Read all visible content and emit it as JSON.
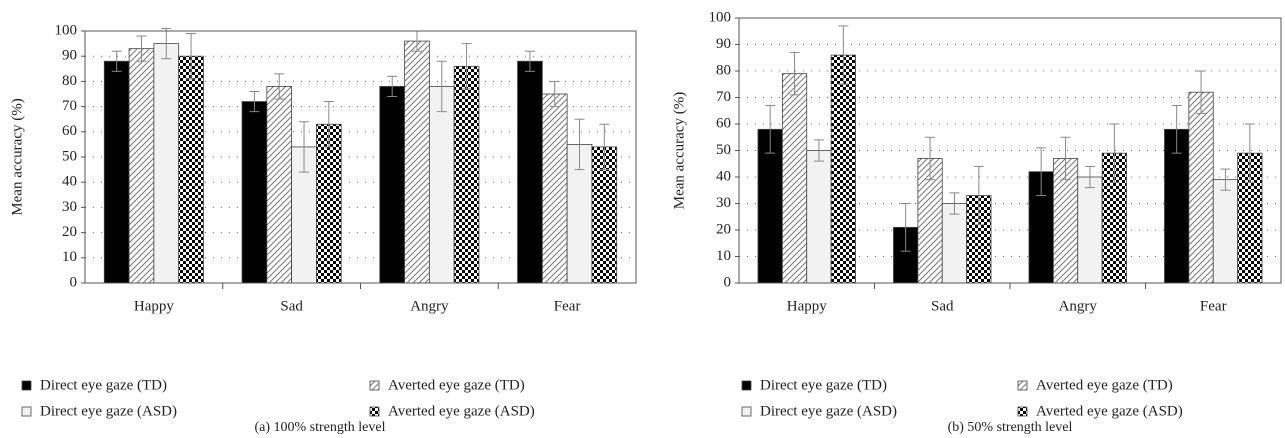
{
  "chart_data": [
    {
      "type": "bar",
      "ylabel": "Mean accuracy (%)",
      "caption": "(a)  100% strength level",
      "categories": [
        "Happy",
        "Sad",
        "Angry",
        "Fear"
      ],
      "ylim": [
        0,
        100
      ],
      "yticks": [
        0,
        10,
        20,
        30,
        40,
        50,
        60,
        70,
        80,
        90,
        100
      ],
      "grid": true,
      "series": [
        {
          "name": "Direct eye gaze (TD)",
          "color": "#000000",
          "pattern": "solid",
          "values": [
            88,
            72,
            78,
            88
          ],
          "errors": [
            4,
            4,
            4,
            4
          ]
        },
        {
          "name": "Averted eye gaze (TD)",
          "color": "#777777",
          "pattern": "hatch",
          "values": [
            93,
            78,
            96,
            75
          ],
          "errors": [
            5,
            5,
            4,
            5
          ]
        },
        {
          "name": "Direct eye gaze (ASD)",
          "color": "#f2f2f2",
          "pattern": "solid",
          "values": [
            95,
            54,
            78,
            55
          ],
          "errors": [
            6,
            10,
            10,
            10
          ]
        },
        {
          "name": "Averted eye gaze (ASD)",
          "color": "#000000",
          "pattern": "checker",
          "values": [
            90,
            63,
            86,
            54
          ],
          "errors": [
            9,
            9,
            9,
            9
          ]
        }
      ]
    },
    {
      "type": "bar",
      "ylabel": "Mean accuracy (%)",
      "caption": "(b)  50% strength level",
      "categories": [
        "Happy",
        "Sad",
        "Angry",
        "Fear"
      ],
      "ylim": [
        0,
        100
      ],
      "yticks": [
        0,
        10,
        20,
        30,
        40,
        50,
        60,
        70,
        80,
        90,
        100
      ],
      "grid": true,
      "series": [
        {
          "name": "Direct eye gaze (TD)",
          "color": "#000000",
          "pattern": "solid",
          "values": [
            58,
            21,
            42,
            58
          ],
          "errors": [
            9,
            9,
            9,
            9
          ]
        },
        {
          "name": "Averted eye gaze (TD)",
          "color": "#777777",
          "pattern": "hatch",
          "values": [
            79,
            47,
            47,
            72
          ],
          "errors": [
            8,
            8,
            8,
            8
          ]
        },
        {
          "name": "Direct eye gaze (ASD)",
          "color": "#f2f2f2",
          "pattern": "solid",
          "values": [
            50,
            30,
            40,
            39
          ],
          "errors": [
            4,
            4,
            4,
            4
          ]
        },
        {
          "name": "Averted eye gaze (ASD)",
          "color": "#000000",
          "pattern": "checker",
          "values": [
            86,
            33,
            49,
            49
          ],
          "errors": [
            11,
            11,
            11,
            11
          ]
        }
      ]
    }
  ]
}
